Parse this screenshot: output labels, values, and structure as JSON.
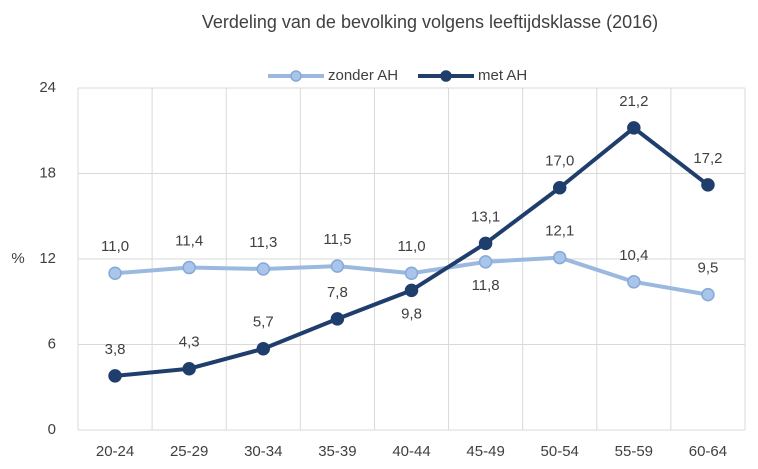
{
  "chart_data": {
    "type": "line",
    "title": "Verdeling van de bevolking volgens leeftijdsklasse (2016)",
    "y_label": "%",
    "categories": [
      "20-24",
      "25-29",
      "30-34",
      "35-39",
      "40-44",
      "45-49",
      "50-54",
      "55-59",
      "60-64"
    ],
    "series": [
      {
        "name": "zonder AH",
        "color": "#9bb9df",
        "values": [
          11.0,
          11.4,
          11.3,
          11.5,
          11.0,
          11.8,
          12.1,
          10.4,
          9.5
        ],
        "value_labels": [
          "11,0",
          "11,4",
          "11,3",
          "11,5",
          "11,0",
          "11,8",
          "12,1",
          "10,4",
          "9,5"
        ]
      },
      {
        "name": "met AH",
        "color": "#1f3e6c",
        "values": [
          3.8,
          4.3,
          5.7,
          7.8,
          9.8,
          13.1,
          17.0,
          21.2,
          17.2
        ],
        "value_labels": [
          "3,8",
          "4,3",
          "5,7",
          "7,8",
          "9,8",
          "13,1",
          "17,0",
          "21,2",
          "17,2"
        ]
      }
    ],
    "ylim": [
      0,
      24
    ],
    "yticks": [
      0,
      6,
      12,
      18,
      24
    ],
    "grid": true,
    "legend": "top"
  }
}
